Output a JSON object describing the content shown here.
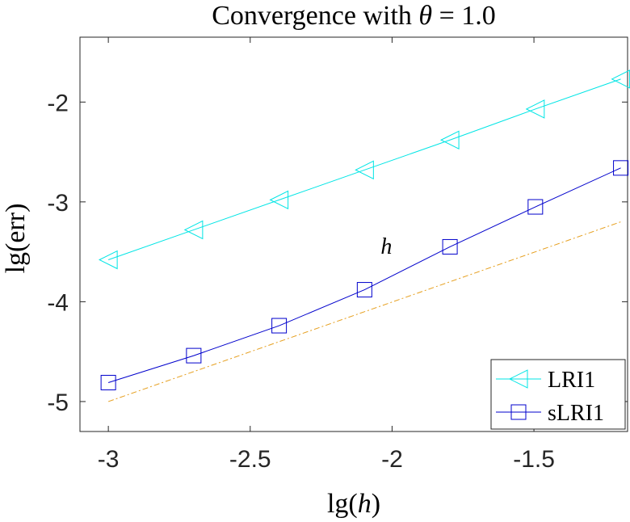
{
  "chart_data": {
    "type": "line",
    "title": "Convergence with θ = 1.0",
    "xlabel": "lg(h)",
    "ylabel": "lg(err)",
    "xlim": [
      -3.1,
      -1.17
    ],
    "ylim": [
      -5.3,
      -1.35
    ],
    "xticks": [
      -3,
      -2.5,
      -2,
      -1.5
    ],
    "xtick_labels": [
      "-3",
      "-2.5",
      "-2",
      "-1.5"
    ],
    "yticks": [
      -5,
      -4,
      -3,
      -2
    ],
    "ytick_labels": [
      "-5",
      "-4",
      "-3",
      "-2"
    ],
    "grid": false,
    "legend_position": "bottom-right",
    "series": [
      {
        "name": "LRI1",
        "color": "#00e5e5",
        "marker": "triangle-left",
        "x": [
          -3.0,
          -2.699,
          -2.398,
          -2.097,
          -1.796,
          -1.495,
          -1.194
        ],
        "y": [
          -3.58,
          -3.28,
          -2.98,
          -2.68,
          -2.38,
          -2.07,
          -1.77
        ]
      },
      {
        "name": "sLRI1",
        "color": "#0000cc",
        "marker": "square",
        "x": [
          -3.0,
          -2.699,
          -2.398,
          -2.097,
          -1.796,
          -1.495,
          -1.194
        ],
        "y": [
          -4.81,
          -4.54,
          -4.24,
          -3.88,
          -3.45,
          -3.05,
          -2.66
        ]
      }
    ],
    "reference_line": {
      "label": "h",
      "color": "#e6a020",
      "style": "dash-dot",
      "x": [
        -3.0,
        -1.194
      ],
      "y": [
        -5.0,
        -3.2
      ]
    },
    "annotations": [
      {
        "text": "h",
        "x": -2.02,
        "y": -3.52
      }
    ]
  }
}
